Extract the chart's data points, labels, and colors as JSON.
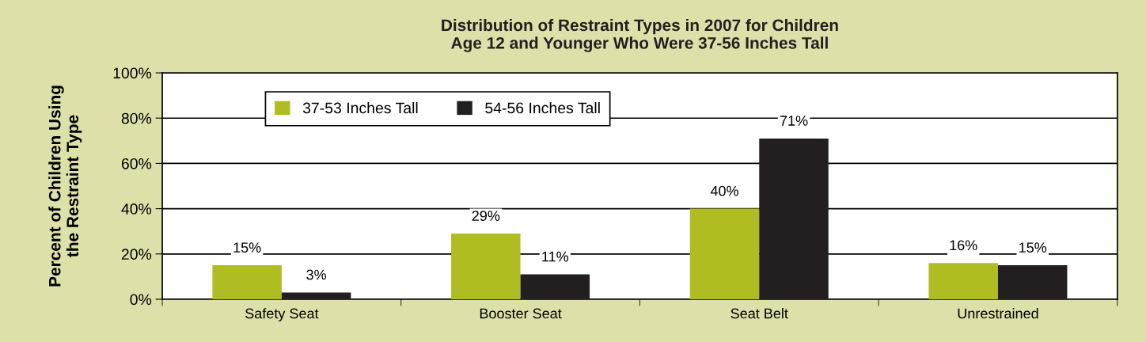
{
  "chart_data": {
    "type": "bar",
    "title": "Distribution of Restraint Types in 2007 for Children\nAge 12 and Younger Who Were 37-56 Inches Tall",
    "ylabel": "Percent of Children Using\nthe Restraint Type",
    "categories": [
      "Safety Seat",
      "Booster Seat",
      "Seat Belt",
      "Unrestrained"
    ],
    "series": [
      {
        "name": "37-53 Inches Tall",
        "color": "#afbd22",
        "values": [
          15,
          29,
          40,
          16
        ],
        "value_labels": [
          "15%",
          "29%",
          "40%",
          "16%"
        ]
      },
      {
        "name": "54-56 Inches Tall",
        "color": "#231f20",
        "values": [
          3,
          11,
          71,
          15
        ],
        "value_labels": [
          "3%",
          "11%",
          "71%",
          "15%"
        ]
      }
    ],
    "ylim": [
      0,
      100
    ],
    "yticks": [
      {
        "value": 0,
        "label": "0%"
      },
      {
        "value": 20,
        "label": "20%"
      },
      {
        "value": 40,
        "label": "40%"
      },
      {
        "value": 60,
        "label": "60%"
      },
      {
        "value": 80,
        "label": "80%"
      },
      {
        "value": 100,
        "label": "100%"
      }
    ],
    "grid": "y",
    "legend": "top left"
  }
}
